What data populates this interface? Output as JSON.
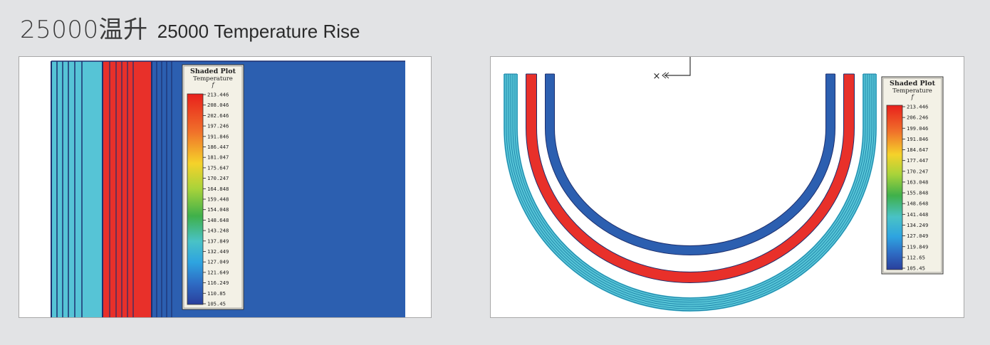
{
  "header": {
    "title_cn": "25000温升",
    "title_en": "25000 Temperature Rise"
  },
  "colors": {
    "hot": "#e8302a",
    "cold": "#2c5fb0",
    "mid": "#56c4d6",
    "line_dark": "#1d2f6e",
    "cyan_line": "#1a7fa6",
    "panel_bg": "#ffffff",
    "page_bg": "#e2e3e5"
  },
  "left_plot": {
    "legend": {
      "title": "Shaded Plot",
      "subtitle": "Temperature",
      "symbol": "f",
      "ticks": [
        "213.446",
        "208.046",
        "202.646",
        "197.246",
        "191.846",
        "186.447",
        "181.047",
        "175.647",
        "170.247",
        "164.848",
        "159.448",
        "154.048",
        "148.648",
        "143.248",
        "137.849",
        "132.449",
        "127.049",
        "121.649",
        "116.249",
        "110.85",
        "105.45"
      ]
    }
  },
  "right_plot": {
    "marker": "×",
    "legend": {
      "title": "Shaded Plot",
      "subtitle": "Temperature",
      "symbol": "f",
      "ticks": [
        "213.446",
        "206.246",
        "199.046",
        "191.846",
        "184.647",
        "177.447",
        "170.247",
        "163.048",
        "155.848",
        "148.648",
        "141.448",
        "134.249",
        "127.049",
        "119.849",
        "112.65",
        "105.45"
      ]
    }
  }
}
